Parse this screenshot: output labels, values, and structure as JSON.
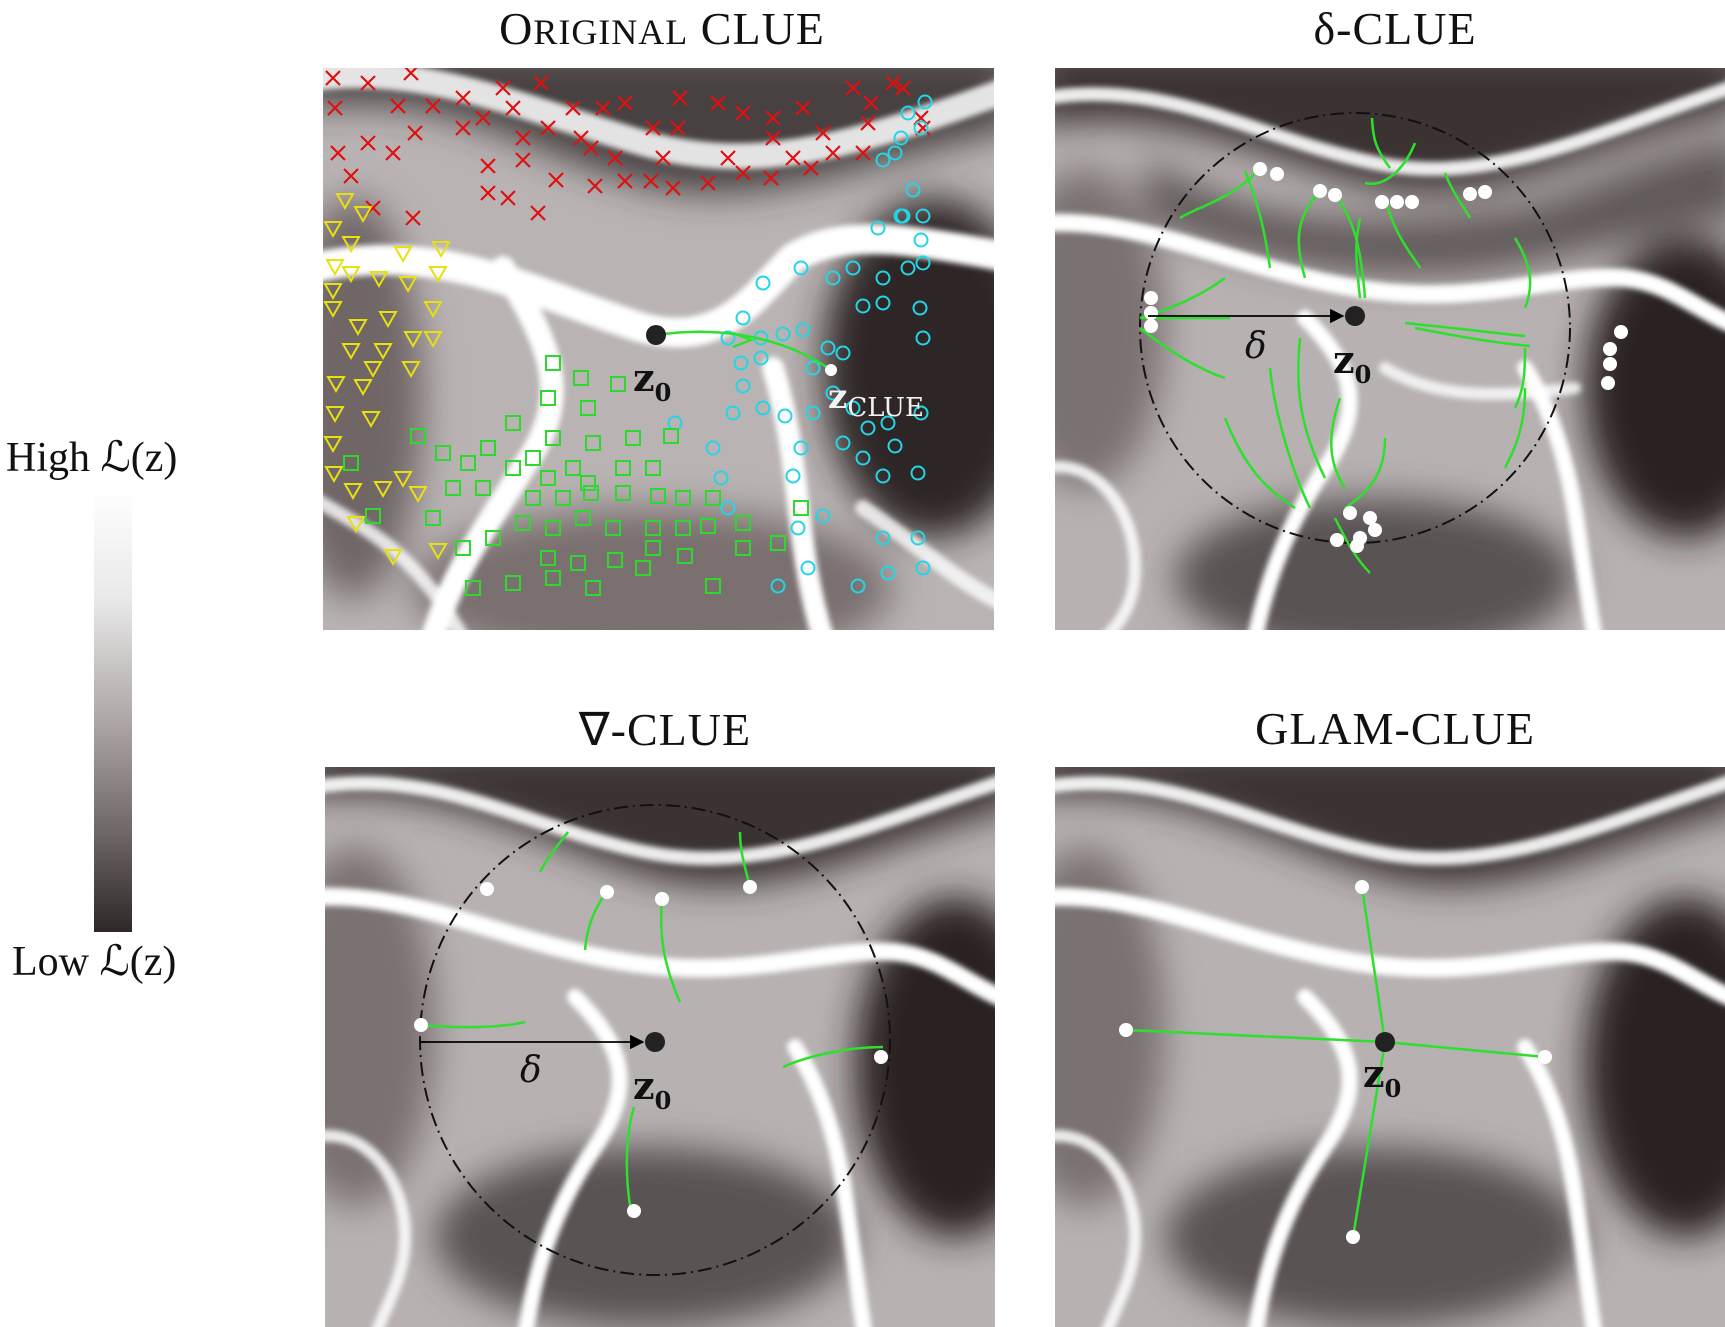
{
  "colorbar": {
    "high_label": "High",
    "low_label": "Low",
    "loss_symbol": "ℒ(z)",
    "gradient": [
      "#ffffff",
      "#e9e9e9",
      "#a8a0a0",
      "#6e6565",
      "#2e2828"
    ]
  },
  "panels": {
    "original": {
      "title_first": "O",
      "title_small": "RIGINAL",
      "title_rest": " CLUE",
      "z0": "z",
      "z0_sub": "0",
      "zclue": "z",
      "zclue_sub": "CLUE"
    },
    "delta": {
      "title": "δ-CLUE",
      "z0": "z",
      "z0_sub": "0",
      "delta": "δ"
    },
    "grad": {
      "title": "∇-CLUE",
      "z0": "z",
      "z0_sub": "0",
      "delta": "δ"
    },
    "glam": {
      "title": "GLAM-CLUE",
      "z0": "z",
      "z0_sub": "0"
    }
  },
  "colors": {
    "class_x": "#e01010",
    "class_circle": "#22d6e6",
    "class_triangle": "#e8e010",
    "class_square": "#2ed82e",
    "path": "#2ee02e",
    "point": "#ffffff",
    "anchor": "#222222"
  }
}
